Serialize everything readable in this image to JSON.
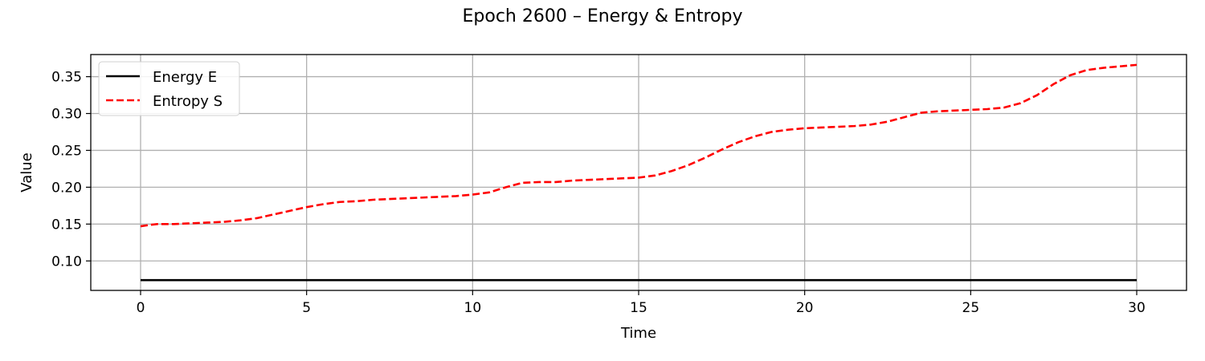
{
  "chart_data": {
    "type": "line",
    "title": "Epoch 2600 – Energy & Entropy",
    "xlabel": "Time",
    "ylabel": "Value",
    "xlim": [
      -1.5,
      31.5
    ],
    "ylim": [
      0.06,
      0.38
    ],
    "xticks": [
      0,
      5,
      10,
      15,
      20,
      25,
      30
    ],
    "yticks": [
      0.1,
      0.15,
      0.2,
      0.25,
      0.3,
      0.35
    ],
    "grid": true,
    "legend_position": "top-left",
    "series": [
      {
        "name": "Energy E",
        "color": "#000000",
        "style": "solid",
        "x": [
          0,
          30
        ],
        "y": [
          0.074,
          0.074
        ]
      },
      {
        "name": "Entropy S",
        "color": "#ff0000",
        "style": "dashed",
        "x": [
          0,
          0.3,
          0.5,
          1,
          1.5,
          2,
          2.5,
          3,
          3.5,
          4,
          4.5,
          5,
          5.5,
          6,
          6.5,
          7,
          7.5,
          8,
          8.5,
          9,
          9.5,
          10,
          10.5,
          11,
          11.5,
          12,
          12.5,
          13,
          13.5,
          14,
          14.5,
          15,
          15.5,
          16,
          16.5,
          17,
          17.5,
          18,
          18.5,
          19,
          19.5,
          20,
          20.5,
          21,
          21.5,
          22,
          22.5,
          23,
          23.5,
          24,
          24.5,
          25,
          25.5,
          26,
          26.5,
          27,
          27.5,
          28,
          28.5,
          29,
          29.5,
          30
        ],
        "y": [
          0.147,
          0.149,
          0.15,
          0.15,
          0.151,
          0.152,
          0.153,
          0.155,
          0.158,
          0.163,
          0.168,
          0.173,
          0.177,
          0.18,
          0.181,
          0.183,
          0.184,
          0.185,
          0.186,
          0.187,
          0.188,
          0.19,
          0.193,
          0.2,
          0.206,
          0.207,
          0.207,
          0.209,
          0.21,
          0.211,
          0.212,
          0.213,
          0.216,
          0.222,
          0.23,
          0.24,
          0.251,
          0.261,
          0.269,
          0.275,
          0.278,
          0.28,
          0.281,
          0.282,
          0.283,
          0.285,
          0.289,
          0.295,
          0.301,
          0.303,
          0.304,
          0.305,
          0.306,
          0.308,
          0.314,
          0.325,
          0.34,
          0.352,
          0.359,
          0.362,
          0.364,
          0.366
        ]
      }
    ]
  }
}
